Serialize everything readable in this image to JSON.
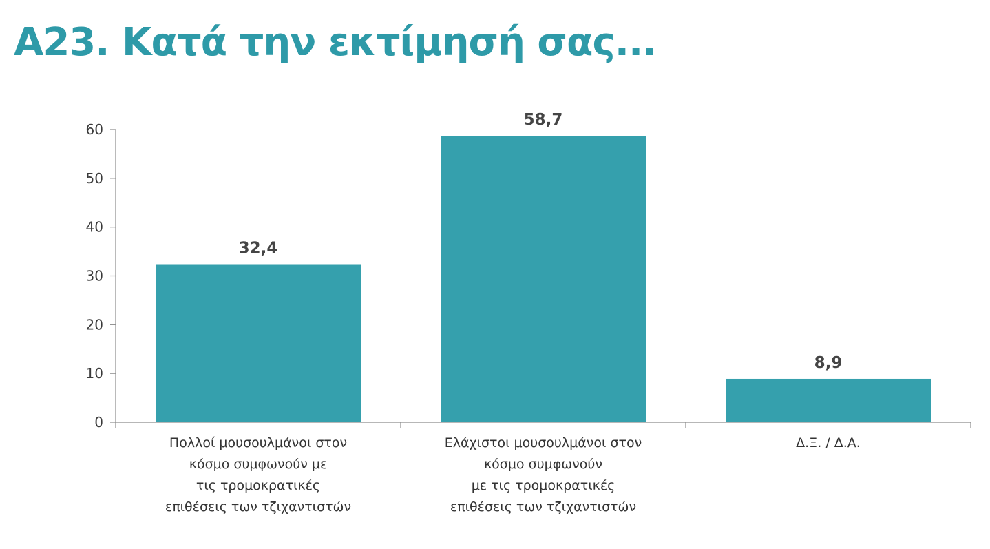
{
  "colors": {
    "title": "#2e9aa8",
    "bar": "#35a0ad",
    "axis": "#8c8c8c"
  },
  "chart_data": {
    "type": "bar",
    "title": "Α23. Κατά την εκτίμησή σας...",
    "categories": [
      [
        "Πολλοί μουσουλμάνοι στον",
        "κόσμο συμφωνούν με",
        "τις τρομοκρατικές",
        "επιθέσεις των τζιχαντιστών"
      ],
      [
        "Ελάχιστοι μουσουλμάνοι στον",
        "κόσμο συμφωνούν",
        "με τις τρομοκρατικές",
        "επιθέσεις των τζιχαντιστών"
      ],
      [
        "Δ.Ξ. / Δ.Α."
      ]
    ],
    "values": [
      32.4,
      58.7,
      8.9
    ],
    "value_labels": [
      "32,4",
      "58,7",
      "8,9"
    ],
    "xlabel": "",
    "ylabel": "",
    "ylim": [
      0,
      60
    ],
    "yticks": [
      0,
      10,
      20,
      30,
      40,
      50,
      60
    ],
    "grid": false,
    "legend": "none"
  }
}
